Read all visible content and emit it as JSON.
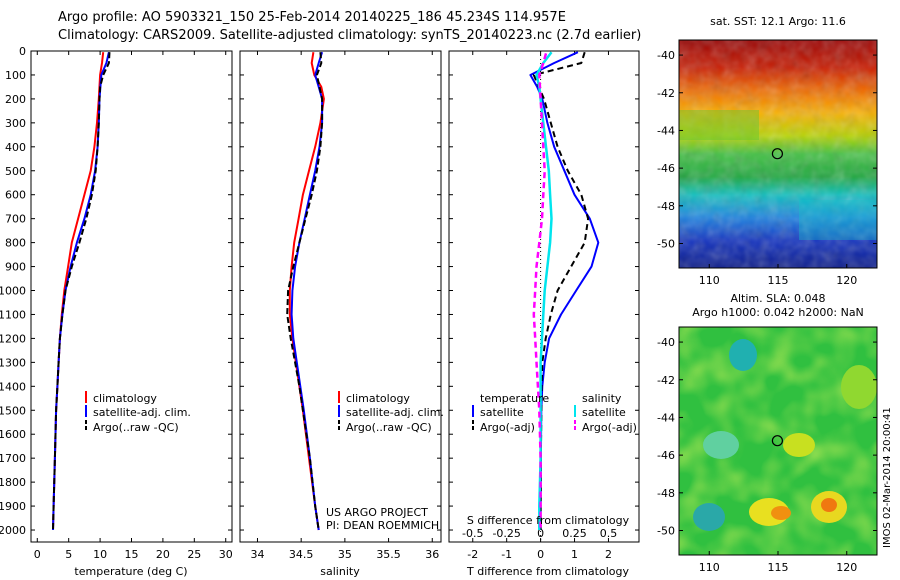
{
  "header": {
    "line1": "Argo profile: AO 5903321_150 25-Feb-2014 20140225_186 45.234S 114.957E",
    "line2": "Climatology: CARS2009. Satellite-adjusted climatology: synTS_20140223.nc (2.7d earlier)"
  },
  "colors": {
    "climatology": "#ff0000",
    "satellite": "#0000ff",
    "argo": "#000000",
    "satellite_s": "#00e5ee",
    "argo_s": "#ff00ff"
  },
  "legend_tp": {
    "climatology": "climatology",
    "satellite": "satellite-adj. clim.",
    "argo": "Argo(..raw -QC)"
  },
  "legend_diff": {
    "temp_title": "temperature",
    "sal_title": "salinity",
    "satellite": "satellite",
    "argo": "Argo(-adj)"
  },
  "credits": {
    "line1": "US ARGO PROJECT",
    "line2": "PI: DEAN ROEMMICH"
  },
  "maps": {
    "sst_title": "sat. SST: 12.1  Argo: 11.6",
    "sla_title1": "Altim. SLA: 0.048",
    "sla_title2": "Argo h1000: 0.042 h2000: NaN",
    "footer": "IMOS 02-Mar-2014 20:00:41",
    "lat_ticks": [
      "-40",
      "-42",
      "-44",
      "-46",
      "-48",
      "-50"
    ],
    "lon_ticks": [
      "110",
      "115",
      "120"
    ],
    "float_lon": 114.957,
    "float_lat": -45.234
  },
  "chart_data": [
    {
      "type": "line",
      "xlabel": "temperature (deg C)",
      "ylim": [
        0,
        2050
      ],
      "xlim": [
        -1,
        31
      ],
      "x_ticks": [
        "0",
        "5",
        "10",
        "15",
        "20",
        "25",
        "30"
      ],
      "y_ticks": [
        "0",
        "100",
        "200",
        "300",
        "400",
        "500",
        "600",
        "700",
        "800",
        "900",
        "1000",
        "1100",
        "1200",
        "1300",
        "1400",
        "1500",
        "1600",
        "1700",
        "1800",
        "1900",
        "2000"
      ],
      "series": [
        {
          "name": "climatology",
          "depth": [
            5,
            50,
            100,
            200,
            300,
            400,
            500,
            600,
            700,
            800,
            900,
            1000,
            1100,
            1200,
            1300,
            1400,
            1500,
            1700,
            1900,
            2000
          ],
          "values": [
            10.5,
            10.3,
            10.0,
            9.8,
            9.5,
            9.1,
            8.5,
            7.5,
            6.5,
            5.5,
            4.9,
            4.3,
            3.9,
            3.6,
            3.4,
            3.2,
            3.0,
            2.8,
            2.6,
            2.5
          ]
        },
        {
          "name": "satellite-adj. clim.",
          "depth": [
            5,
            50,
            100,
            200,
            300,
            400,
            500,
            600,
            700,
            800,
            900,
            1000,
            1100,
            1200,
            1300,
            1400,
            1500,
            1700,
            1900,
            2000
          ],
          "values": [
            11.4,
            11.0,
            10.2,
            9.9,
            9.8,
            9.6,
            9.2,
            8.5,
            7.5,
            6.3,
            5.3,
            4.5,
            4.0,
            3.6,
            3.4,
            3.2,
            3.0,
            2.8,
            2.6,
            2.5
          ]
        },
        {
          "name": "Argo(..raw -QC)",
          "depth": [
            5,
            50,
            100,
            150,
            200,
            300,
            400,
            500,
            600,
            700,
            800,
            900,
            1000,
            1100,
            1200,
            1300,
            1400,
            1500,
            1700,
            1900,
            2000
          ],
          "values": [
            11.5,
            11.4,
            10.5,
            10.0,
            9.9,
            9.8,
            9.6,
            9.3,
            8.7,
            7.8,
            6.7,
            5.5,
            4.5,
            4.0,
            3.6,
            3.4,
            3.2,
            3.0,
            2.8,
            2.6,
            2.5
          ]
        }
      ]
    },
    {
      "type": "line",
      "xlabel": "salinity",
      "ylim": [
        0,
        2050
      ],
      "xlim": [
        33.8,
        36.1
      ],
      "x_ticks": [
        "34",
        "34.5",
        "35",
        "35.5",
        "36"
      ],
      "series": [
        {
          "name": "climatology",
          "depth": [
            5,
            50,
            100,
            150,
            200,
            300,
            400,
            500,
            600,
            700,
            800,
            900,
            1000,
            1100,
            1200,
            1300,
            1400,
            1500,
            1700,
            1900,
            2000
          ],
          "values": [
            34.64,
            34.62,
            34.65,
            34.73,
            34.76,
            34.72,
            34.66,
            34.59,
            34.52,
            34.47,
            34.42,
            34.39,
            34.37,
            34.37,
            34.4,
            34.44,
            34.48,
            34.52,
            34.59,
            34.66,
            34.7
          ]
        },
        {
          "name": "satellite-adj. clim.",
          "depth": [
            5,
            50,
            100,
            150,
            200,
            300,
            400,
            500,
            600,
            700,
            800,
            900,
            1000,
            1100,
            1200,
            1300,
            1400,
            1500,
            1700,
            1900,
            2000
          ],
          "values": [
            34.74,
            34.7,
            34.66,
            34.7,
            34.74,
            34.74,
            34.71,
            34.66,
            34.6,
            34.54,
            34.48,
            34.43,
            34.4,
            34.39,
            34.41,
            34.45,
            34.49,
            34.53,
            34.6,
            34.66,
            34.7
          ]
        },
        {
          "name": "Argo(..raw -QC)",
          "depth": [
            5,
            50,
            100,
            150,
            200,
            300,
            400,
            500,
            600,
            700,
            800,
            900,
            1000,
            1100,
            1200,
            1300,
            1400,
            1500,
            1700,
            1900,
            2000
          ],
          "values": [
            34.72,
            34.73,
            34.68,
            34.71,
            34.74,
            34.74,
            34.72,
            34.68,
            34.62,
            34.55,
            34.48,
            34.41,
            34.35,
            34.34,
            34.38,
            34.43,
            34.48,
            34.52,
            34.6,
            34.66,
            34.7
          ]
        }
      ]
    },
    {
      "type": "line",
      "xlabel": "T difference from climatology",
      "top_xlabel": "S difference from climatology",
      "ylim": [
        0,
        2050
      ],
      "xlim": [
        -2.7,
        2.9
      ],
      "x_ticks": [
        "-2",
        "-1",
        "0",
        "1",
        "2"
      ],
      "top_ticks": [
        {
          "label": "-0.5",
          "v": -0.5
        },
        {
          "label": "-0.25",
          "v": -0.25
        },
        {
          "label": "0",
          "v": 0
        },
        {
          "label": "0.25",
          "v": 0.25
        },
        {
          "label": "0.5",
          "v": 0.5
        }
      ],
      "top_scale": 4,
      "series": [
        {
          "name": "satellite",
          "kind": "T",
          "depth": [
            5,
            50,
            100,
            150,
            200,
            300,
            400,
            500,
            600,
            700,
            800,
            900,
            1000,
            1100,
            1200,
            1300,
            1400,
            1500,
            1700,
            1900,
            2000
          ],
          "values": [
            1.1,
            0.4,
            -0.3,
            -0.1,
            0.05,
            0.2,
            0.4,
            0.7,
            1.0,
            1.45,
            1.7,
            1.5,
            1.05,
            0.6,
            0.25,
            0.12,
            0.05,
            0.02,
            0.01,
            0.0,
            0.0
          ]
        },
        {
          "name": "Argo(-adj)",
          "kind": "T",
          "depth": [
            5,
            50,
            100,
            200,
            300,
            400,
            500,
            600,
            700,
            800,
            900,
            1000,
            1100,
            1200,
            1300,
            1400,
            1500,
            1700,
            1900,
            2000
          ],
          "values": [
            1.3,
            1.2,
            -0.2,
            0.1,
            0.3,
            0.5,
            0.8,
            1.2,
            1.4,
            1.3,
            0.9,
            0.5,
            0.3,
            0.15,
            0.05,
            0.03,
            0.02,
            0.01,
            0.0,
            0.0
          ]
        },
        {
          "name": "satellite",
          "kind": "S",
          "depth": [
            5,
            50,
            100,
            150,
            200,
            300,
            400,
            500,
            600,
            700,
            800,
            900,
            1000,
            1100,
            1200,
            1300,
            1400,
            1500,
            1700,
            1900,
            2000
          ],
          "values": [
            0.08,
            0.02,
            -0.03,
            -0.01,
            0.0,
            0.02,
            0.04,
            0.06,
            0.07,
            0.08,
            0.07,
            0.05,
            0.03,
            0.02,
            0.01,
            0.0,
            0.0,
            0.0,
            0.0,
            -0.01,
            -0.01
          ]
        },
        {
          "name": "Argo(-adj)",
          "kind": "S",
          "depth": [
            10,
            50,
            100,
            200,
            300,
            400,
            500,
            600,
            700,
            800,
            900,
            1000,
            1100,
            1200,
            1300,
            1400,
            1500,
            1700,
            1900,
            2000
          ],
          "values": [
            0.04,
            0.02,
            -0.01,
            0.0,
            0.01,
            0.02,
            0.03,
            0.02,
            0.01,
            -0.01,
            -0.03,
            -0.04,
            -0.05,
            -0.04,
            -0.03,
            -0.02,
            -0.01,
            0.0,
            0.0,
            0.0
          ]
        }
      ]
    }
  ]
}
